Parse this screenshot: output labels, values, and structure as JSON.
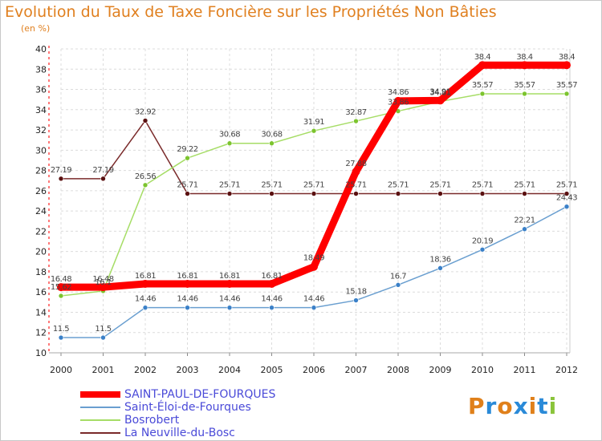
{
  "title": "Evolution du Taux de Taxe Foncière sur les Propriétés Non Bâties",
  "unit_label": "(en %)",
  "logo": {
    "text": "Proxiti",
    "colors": [
      "#e0801a",
      "#2a8ad8",
      "#e0801a",
      "#2a8ad8",
      "#e0801a",
      "#2a8ad8",
      "#8ac43a"
    ]
  },
  "chart_data": {
    "type": "line",
    "title": "Evolution du Taux de Taxe Foncière sur les Propriétés Non Bâties",
    "ylabel": "(en %)",
    "x": [
      "2000",
      "2001",
      "2002",
      "2003",
      "2004",
      "2005",
      "2006",
      "2007",
      "2008",
      "2009",
      "2010",
      "2011",
      "2012"
    ],
    "ylim": [
      10,
      40
    ],
    "yticks": [
      "10",
      "12",
      "14",
      "16",
      "18",
      "20",
      "22",
      "24",
      "26",
      "28",
      "30",
      "32",
      "34",
      "36",
      "38",
      "40"
    ],
    "grid": true,
    "series": [
      {
        "name": "SAINT-PAUL-DE-FOURQUES",
        "color": "#ff0000",
        "marker": "#ff0000",
        "values": [
          16.48,
          16.48,
          16.81,
          16.81,
          16.81,
          16.81,
          18.49,
          27.88,
          34.86,
          34.91,
          38.4,
          38.4,
          38.4
        ],
        "labels": [
          "16.48",
          "16.48",
          "16.81",
          "16.81",
          "16.81",
          "16.81",
          "18.49",
          "27.88",
          "34.86",
          "34.91",
          "38.4",
          "38.4",
          "38.4"
        ]
      },
      {
        "name": "Saint-Éloi-de-Fourques",
        "color": "#6a9fd0",
        "marker": "#3a80c8",
        "values": [
          11.5,
          11.5,
          14.46,
          14.46,
          14.46,
          14.46,
          14.46,
          15.18,
          16.7,
          18.36,
          20.19,
          22.21,
          24.43
        ],
        "labels": [
          "11.5",
          "11.5",
          "14.46",
          "14.46",
          "14.46",
          "14.46",
          "14.46",
          "15.18",
          "16.7",
          "18.36",
          "20.19",
          "22.21",
          "24.43"
        ]
      },
      {
        "name": "Bosrobert",
        "color": "#a6dd66",
        "marker": "#7cc42e",
        "values": [
          15.62,
          16.1,
          26.56,
          29.22,
          30.68,
          30.68,
          31.91,
          32.87,
          33.86,
          34.81,
          35.57,
          35.57,
          35.57
        ],
        "labels": [
          "15.62",
          "16.1",
          "26.56",
          "29.22",
          "30.68",
          "30.68",
          "31.91",
          "32.87",
          "33.86",
          "34.81",
          "35.57",
          "35.57",
          "35.57"
        ]
      },
      {
        "name": "La Neuville-du-Bosc",
        "color": "#7a2a2a",
        "marker": "#5a1010",
        "values": [
          27.19,
          27.19,
          32.92,
          25.71,
          25.71,
          25.71,
          25.71,
          25.71,
          25.71,
          25.71,
          25.71,
          25.71,
          25.71
        ],
        "labels": [
          "27.19",
          "27.19",
          "32.92",
          "25.71",
          "25.71",
          "25.71",
          "25.71",
          "25.71",
          "25.71",
          "25.71",
          "25.71",
          "25.71",
          "25.71"
        ]
      }
    ]
  }
}
